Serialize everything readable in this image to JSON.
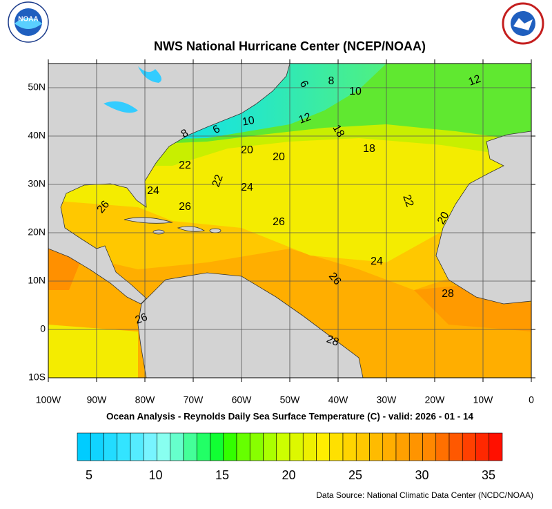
{
  "header": {
    "title": "NWS National Hurricane Center (NCEP/NOAA)",
    "logo_left": "NOAA"
  },
  "map": {
    "lat_ticks": [
      {
        "value": 50,
        "label": "50N"
      },
      {
        "value": 40,
        "label": "40N"
      },
      {
        "value": 30,
        "label": "30N"
      },
      {
        "value": 20,
        "label": "20N"
      },
      {
        "value": 10,
        "label": "10N"
      },
      {
        "value": 0,
        "label": "0"
      },
      {
        "value": -10,
        "label": "10S"
      }
    ],
    "lon_ticks": [
      {
        "value": -100,
        "label": "100W"
      },
      {
        "value": -90,
        "label": "90W"
      },
      {
        "value": -80,
        "label": "80W"
      },
      {
        "value": -70,
        "label": "70W"
      },
      {
        "value": -60,
        "label": "60W"
      },
      {
        "value": -50,
        "label": "50W"
      },
      {
        "value": -40,
        "label": "40W"
      },
      {
        "value": -30,
        "label": "30W"
      },
      {
        "value": -20,
        "label": "20W"
      },
      {
        "value": -10,
        "label": "10W"
      },
      {
        "value": 0,
        "label": "0"
      }
    ],
    "contour_labels": [
      "6",
      "8",
      "10",
      "12",
      "8",
      "6",
      "10",
      "12",
      "18",
      "20",
      "20",
      "18",
      "22",
      "22",
      "24",
      "24",
      "26",
      "26",
      "22",
      "20",
      "26",
      "24",
      "26",
      "28",
      "26",
      "28"
    ]
  },
  "subtitle": "Ocean Analysis - Reynolds Daily Sea Surface Temperature (C) - valid: 2026 - 01 - 14",
  "colorbar": {
    "ticks": [
      5,
      10,
      15,
      20,
      25,
      30,
      35
    ]
  },
  "source": "Data Source: National Climatic Data Center (NCDC/NOAA)"
}
